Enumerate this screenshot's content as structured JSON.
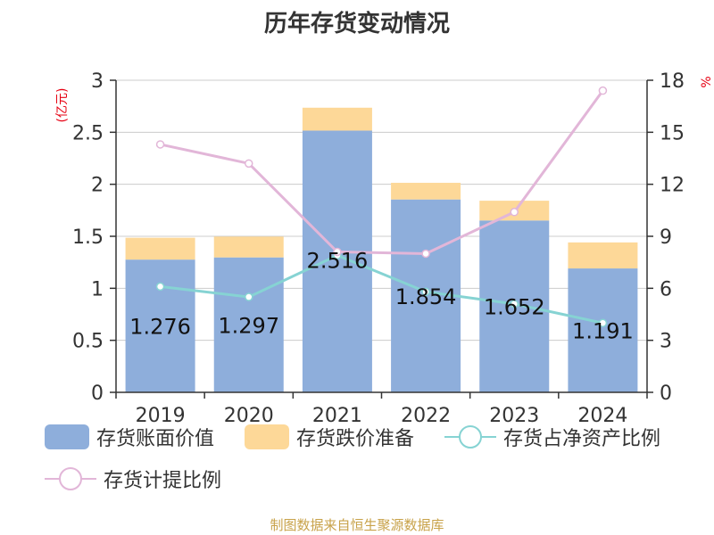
{
  "title": "历年存货变动情况",
  "source_note": "制图数据来自恒生聚源数据库",
  "colors": {
    "book_value": "#8eaedb",
    "provision": "#fdd898",
    "ratio_net_assets": "#86d3d3",
    "provision_ratio": "#e2b6d8",
    "axis_unit": "#e60012"
  },
  "legend": [
    {
      "label": "存货账面价值",
      "kind": "bar",
      "color_key": "book_value"
    },
    {
      "label": "存货跌价准备",
      "kind": "bar",
      "color_key": "provision"
    },
    {
      "label": "存货占净资产比例",
      "kind": "line",
      "color_key": "ratio_net_assets"
    },
    {
      "label": "存货计提比例",
      "kind": "line",
      "color_key": "provision_ratio"
    }
  ],
  "chart_data": {
    "type": "bar",
    "title": "历年存货变动情况",
    "categories": [
      "2019",
      "2020",
      "2021",
      "2022",
      "2023",
      "2024"
    ],
    "left_axis": {
      "unit_label": "(亿元)",
      "ylim": [
        0,
        3
      ],
      "ticks": [
        "0",
        "0.5",
        "1",
        "1.5",
        "2",
        "2.5",
        "3"
      ]
    },
    "right_axis": {
      "unit_label": "%",
      "ylim": [
        0,
        18
      ],
      "ticks": [
        "0",
        "3",
        "6",
        "9",
        "12",
        "15",
        "18"
      ]
    },
    "grid": true,
    "legend_position": "bottom",
    "series": [
      {
        "name": "存货账面价值",
        "kind": "bar",
        "stack": "s",
        "axis": "left",
        "color_key": "book_value",
        "values": [
          1.276,
          1.297,
          2.516,
          1.854,
          1.652,
          1.191
        ],
        "labels": [
          "1.276",
          "1.297",
          "2.516",
          "1.854",
          "1.652",
          "1.191"
        ]
      },
      {
        "name": "存货跌价准备",
        "kind": "bar",
        "stack": "s",
        "axis": "left",
        "color_key": "provision",
        "values": [
          0.21,
          0.2,
          0.22,
          0.16,
          0.19,
          0.25
        ]
      },
      {
        "name": "存货占净资产比例",
        "kind": "line",
        "axis": "right",
        "color_key": "ratio_net_assets",
        "values": [
          6.1,
          5.5,
          7.9,
          5.8,
          5.1,
          4.0
        ]
      },
      {
        "name": "存货计提比例",
        "kind": "line",
        "axis": "right",
        "color_key": "provision_ratio",
        "values": [
          14.3,
          13.2,
          8.1,
          8.0,
          10.4,
          17.4
        ]
      }
    ]
  }
}
